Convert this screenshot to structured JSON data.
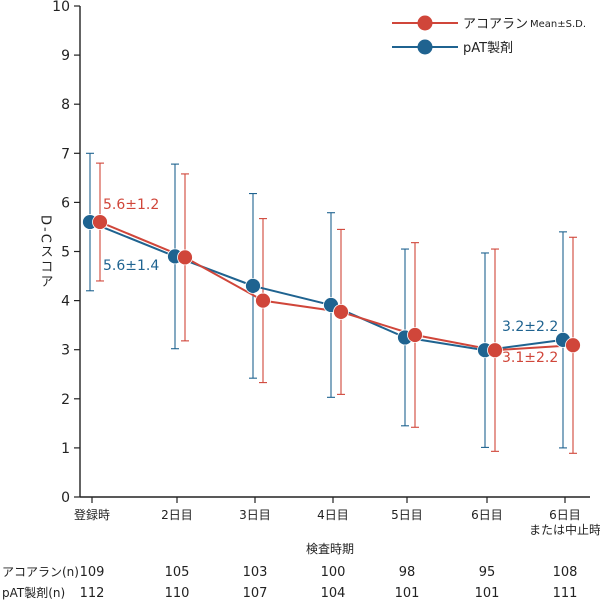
{
  "chart_data": {
    "type": "line",
    "ylabel": "D-Cスコア",
    "xlabel": "検査時期",
    "ylim": [
      0,
      10
    ],
    "yticks": [
      "0",
      "1",
      "2",
      "3",
      "4",
      "5",
      "6",
      "7",
      "8",
      "9",
      "10"
    ],
    "categories": [
      "登録時",
      "2日目",
      "3日目",
      "4日目",
      "5日目",
      "6日目",
      "6日目\nまたは中止時"
    ],
    "legend_note": "Mean±S.D.",
    "legend_position": "top-right",
    "grid": false,
    "series": [
      {
        "name": "アコアラン",
        "color": "#d0463a",
        "values": [
          5.6,
          4.88,
          4.0,
          3.77,
          3.3,
          2.99,
          3.09
        ],
        "sd": [
          1.2,
          1.7,
          1.67,
          1.68,
          1.88,
          2.06,
          2.2
        ],
        "n": [
          109,
          105,
          103,
          100,
          98,
          95,
          108
        ]
      },
      {
        "name": "pAT製剤",
        "color": "#1f6390",
        "values": [
          5.6,
          4.9,
          4.3,
          3.91,
          3.25,
          2.99,
          3.2
        ],
        "sd": [
          1.4,
          1.88,
          1.88,
          1.88,
          1.8,
          1.98,
          2.2
        ],
        "n": [
          112,
          110,
          107,
          104,
          101,
          101,
          111
        ]
      }
    ],
    "annotations": [
      {
        "text": "5.6±1.2",
        "series": 0
      },
      {
        "text": "5.6±1.4",
        "series": 1
      },
      {
        "text": "3.2±2.2",
        "series": 1
      },
      {
        "text": "3.1±2.2",
        "series": 0
      }
    ],
    "n_table": {
      "rows": [
        {
          "label": "アコアラン(n)",
          "values": [
            "109",
            "105",
            "103",
            "100",
            "98",
            "95",
            "108"
          ]
        },
        {
          "label": "pAT製剤(n)",
          "values": [
            "112",
            "110",
            "107",
            "104",
            "101",
            "101",
            "111"
          ]
        }
      ]
    }
  }
}
